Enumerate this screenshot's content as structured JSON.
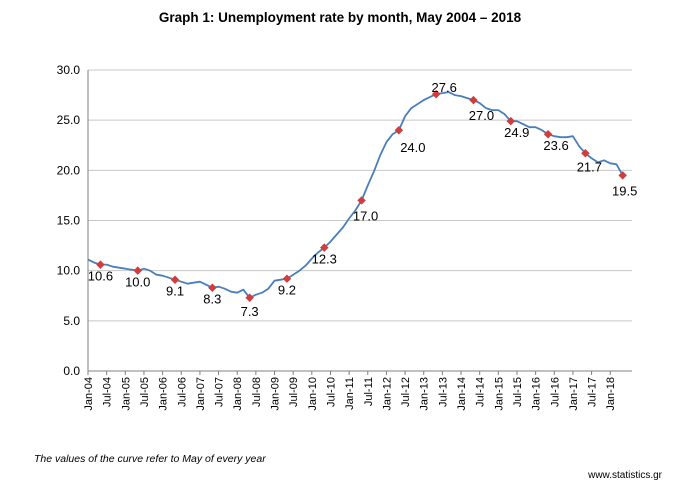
{
  "title": "Graph 1: Unemployment rate by month, May 2004 – 2018",
  "footnote": "The values of the curve refer to May  of every year",
  "source": "www.statistics.gr",
  "chart_data": {
    "type": "line",
    "title": "Graph 1: Unemployment rate by month, May 2004 – 2018",
    "xlabel": "",
    "ylabel": "",
    "ylim": [
      0,
      30
    ],
    "y_ticks": [
      "0.0",
      "5.0",
      "10.0",
      "15.0",
      "20.0",
      "25.0",
      "30.0"
    ],
    "x_tick_labels": [
      "Jan-04",
      "Jul-04",
      "Jan-05",
      "Jul-05",
      "Jan-06",
      "Jul-06",
      "Jan-07",
      "Jul-07",
      "Jan-08",
      "Jul-08",
      "Jan-09",
      "Jul-09",
      "Jan-10",
      "Jul-10",
      "Jan-11",
      "Jul-11",
      "Jan-12",
      "Jul-12",
      "Jan-13",
      "Jul-13",
      "Jan-14",
      "Jul-14",
      "Jan-15",
      "Jul-15",
      "Jan-16",
      "Jul-16",
      "Jan-17",
      "Jul-17",
      "Jan-18"
    ],
    "grid": "horizontal",
    "line_color": "#4a7ebb",
    "marker_color": "#d23c3c",
    "series": [
      {
        "x": [
          "2004-01",
          "2004-03",
          "2004-05",
          "2004-07",
          "2004-09",
          "2004-11",
          "2005-01",
          "2005-03",
          "2005-05",
          "2005-07",
          "2005-09",
          "2005-11",
          "2006-01",
          "2006-03",
          "2006-05",
          "2006-07",
          "2006-09",
          "2006-11",
          "2007-01",
          "2007-03",
          "2007-05",
          "2007-07",
          "2007-09",
          "2007-11",
          "2008-01",
          "2008-03",
          "2008-05",
          "2008-07",
          "2008-09",
          "2008-11",
          "2009-01",
          "2009-03",
          "2009-05",
          "2009-07",
          "2009-09",
          "2009-11",
          "2010-01",
          "2010-03",
          "2010-05",
          "2010-07",
          "2010-09",
          "2010-11",
          "2011-01",
          "2011-03",
          "2011-05",
          "2011-07",
          "2011-09",
          "2011-11",
          "2012-01",
          "2012-03",
          "2012-05",
          "2012-07",
          "2012-09",
          "2012-11",
          "2013-01",
          "2013-03",
          "2013-05",
          "2013-07",
          "2013-09",
          "2013-11",
          "2014-01",
          "2014-03",
          "2014-05",
          "2014-07",
          "2014-09",
          "2014-11",
          "2015-01",
          "2015-03",
          "2015-05",
          "2015-07",
          "2015-09",
          "2015-11",
          "2016-01",
          "2016-03",
          "2016-05",
          "2016-07",
          "2016-09",
          "2016-11",
          "2017-01",
          "2017-03",
          "2017-05",
          "2017-07",
          "2017-09",
          "2017-11",
          "2018-01",
          "2018-03",
          "2018-05"
        ],
        "values": [
          11.1,
          10.8,
          10.6,
          10.6,
          10.4,
          10.3,
          10.2,
          10.1,
          10.0,
          10.2,
          10.0,
          9.6,
          9.5,
          9.3,
          9.1,
          8.9,
          8.7,
          8.8,
          8.9,
          8.6,
          8.3,
          8.4,
          8.2,
          7.9,
          7.8,
          8.1,
          7.3,
          7.6,
          7.8,
          8.2,
          9.0,
          9.1,
          9.2,
          9.6,
          10.0,
          10.5,
          11.2,
          11.8,
          12.3,
          12.9,
          13.6,
          14.3,
          15.2,
          16.0,
          17.0,
          18.5,
          19.9,
          21.5,
          22.8,
          23.6,
          24.0,
          25.4,
          26.2,
          26.6,
          27.0,
          27.3,
          27.6,
          27.7,
          27.8,
          27.5,
          27.4,
          27.2,
          27.0,
          26.7,
          26.2,
          26.0,
          26.0,
          25.6,
          24.9,
          24.9,
          24.6,
          24.3,
          24.3,
          24.0,
          23.6,
          23.4,
          23.3,
          23.3,
          23.4,
          22.4,
          21.7,
          21.2,
          20.8,
          21.0,
          20.7,
          20.6,
          19.5
        ]
      }
    ],
    "may_points": [
      {
        "x": "2004-05",
        "value": 10.6,
        "label": "10.6"
      },
      {
        "x": "2005-05",
        "value": 10.0,
        "label": "10.0"
      },
      {
        "x": "2006-05",
        "value": 9.1,
        "label": "9.1"
      },
      {
        "x": "2007-05",
        "value": 8.3,
        "label": "8.3"
      },
      {
        "x": "2008-05",
        "value": 7.3,
        "label": "7.3"
      },
      {
        "x": "2009-05",
        "value": 9.2,
        "label": "9.2"
      },
      {
        "x": "2010-05",
        "value": 12.3,
        "label": "12.3"
      },
      {
        "x": "2011-05",
        "value": 17.0,
        "label": "17.0"
      },
      {
        "x": "2012-05",
        "value": 24.0,
        "label": "24.0"
      },
      {
        "x": "2013-05",
        "value": 27.6,
        "label": "27.6"
      },
      {
        "x": "2014-05",
        "value": 27.0,
        "label": "27.0"
      },
      {
        "x": "2015-05",
        "value": 24.9,
        "label": "24.9"
      },
      {
        "x": "2016-05",
        "value": 23.6,
        "label": "23.6"
      },
      {
        "x": "2017-05",
        "value": 21.7,
        "label": "21.7"
      },
      {
        "x": "2018-05",
        "value": 19.5,
        "label": "19.5"
      }
    ]
  }
}
